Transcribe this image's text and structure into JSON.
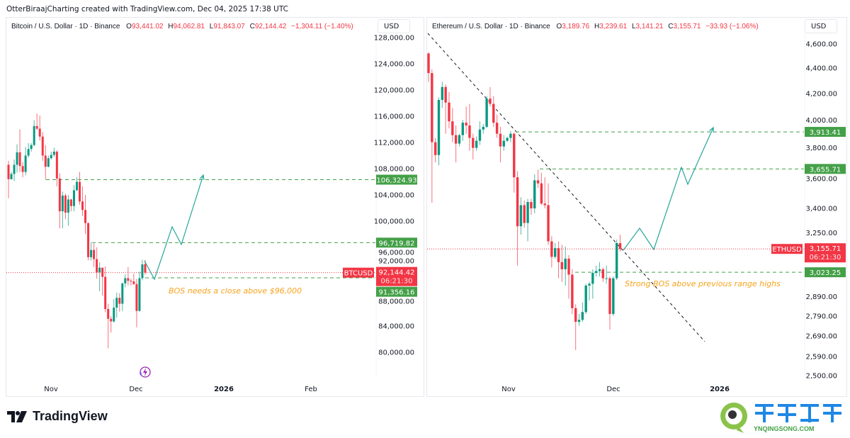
{
  "credit": "OtterBiraajCharting created with TradingView.com, Dec 04, 2025 17:38 UTC",
  "footer": {
    "logo_text": "TradingView",
    "watermark_cn": "轻松科技",
    "watermark_url": "YNQINGSONG.COM"
  },
  "colors": {
    "up": "#089981",
    "down": "#f23645",
    "level": "#43a047",
    "projection": "#26a69a",
    "note": "#f7a21b",
    "trend": "#131722"
  },
  "panels": {
    "btc": {
      "title": "Bitcoin / U.S. Dollar · 1D · Binance",
      "O": "93,441.02",
      "H": "94,062.81",
      "L": "91,843.07",
      "C": "92,144.42",
      "change": "−1,304.11 (−1.40%)",
      "currency": "USD"
    },
    "eth": {
      "title": "Ethereum / U.S. Dollar · 1D · Binance",
      "O": "3,189.76",
      "H": "3,239.61",
      "L": "3,141.21",
      "C": "3,155.71",
      "change": "−33.93 (−1.06%)",
      "currency": "USD"
    }
  },
  "chart_data": [
    {
      "type": "candlestick",
      "symbol": "BTCUSD",
      "scale": "linear",
      "ylim": [
        80000,
        128000
      ],
      "y_ticks": [
        "128,000.00",
        "124,000.00",
        "120,000.00",
        "116,000.00",
        "112,000.00",
        "108,000.00",
        "104,000.00",
        "100,000.00",
        "96,000.00",
        "92,000.00",
        "88,000.00",
        "84,000.00",
        "80,000.00"
      ],
      "x_ticks": [
        {
          "label": "Nov",
          "bold": false
        },
        {
          "label": "Dec",
          "bold": false
        },
        {
          "label": "2026",
          "bold": true
        },
        {
          "label": "Feb",
          "bold": false
        }
      ],
      "date_range": [
        "2025-10-17",
        "2025-12-04"
      ],
      "ohlc": [
        [
          108600,
          109200,
          103500,
          106400
        ],
        [
          106400,
          107500,
          106300,
          107200
        ],
        [
          107200,
          109400,
          106100,
          108600
        ],
        [
          108600,
          111700,
          107400,
          110500
        ],
        [
          110500,
          114000,
          107500,
          108400
        ],
        [
          108400,
          109000,
          106700,
          107500
        ],
        [
          107500,
          111300,
          107000,
          110000
        ],
        [
          110000,
          111900,
          109700,
          111000
        ],
        [
          111000,
          111900,
          110600,
          111600
        ],
        [
          111600,
          115400,
          111400,
          114500
        ],
        [
          114500,
          116400,
          113900,
          114100
        ],
        [
          114100,
          116100,
          112300,
          112900
        ],
        [
          112900,
          113600,
          109200,
          110000
        ],
        [
          110000,
          111600,
          106300,
          108300
        ],
        [
          108300,
          110000,
          108200,
          109600
        ],
        [
          109600,
          110600,
          109400,
          110100
        ],
        [
          110100,
          111200,
          109800,
          110600
        ],
        [
          110600,
          110800,
          105300,
          106500
        ],
        [
          106500,
          107300,
          98900,
          101500
        ],
        [
          101500,
          104500,
          98900,
          103900
        ],
        [
          103900,
          104200,
          100300,
          101300
        ],
        [
          101300,
          104000,
          99300,
          103300
        ],
        [
          103300,
          103400,
          101500,
          102300
        ],
        [
          102300,
          105500,
          101500,
          104700
        ],
        [
          104700,
          106700,
          104600,
          106000
        ],
        [
          106000,
          107500,
          102500,
          103000
        ],
        [
          103000,
          105300,
          100800,
          101700
        ],
        [
          101700,
          104000,
          98000,
          99700
        ],
        [
          99700,
          99800,
          94000,
          94500
        ],
        [
          94500,
          96800,
          94000,
          95600
        ],
        [
          95600,
          96600,
          93000,
          94200
        ],
        [
          94200,
          96000,
          91200,
          92200
        ],
        [
          92200,
          93700,
          89300,
          92900
        ],
        [
          92900,
          92900,
          88600,
          91500
        ],
        [
          91500,
          93100,
          86100,
          86600
        ],
        [
          86600,
          87400,
          80600,
          85100
        ],
        [
          85100,
          85500,
          83000,
          84700
        ],
        [
          84700,
          88100,
          84500,
          86800
        ],
        [
          86800,
          89100,
          85300,
          88300
        ],
        [
          88300,
          89000,
          86200,
          87400
        ],
        [
          87400,
          90600,
          86300,
          90500
        ],
        [
          90500,
          91900,
          89900,
          91300
        ],
        [
          91300,
          93000,
          90200,
          90900
        ],
        [
          90900,
          91200,
          90200,
          90800
        ],
        [
          90800,
          92000,
          90300,
          90400
        ],
        [
          90400,
          91200,
          83800,
          86300
        ],
        [
          86300,
          92300,
          86200,
          91300
        ],
        [
          91300,
          94100,
          91000,
          93400
        ],
        [
          93441.02,
          94062.81,
          91843.07,
          92144.42
        ]
      ],
      "levels": [
        {
          "value": 106324.93,
          "label": "106,324.93"
        },
        {
          "value": 96719.82,
          "label": "96,719.82"
        },
        {
          "value": 91356.16,
          "label": "91,356.16"
        }
      ],
      "last_price": {
        "value": 92144.42,
        "label": "92,144.42",
        "symbol": "BTCUSD",
        "countdown": "06:21:30"
      },
      "annotation": "BOS needs a close above $96,000"
    },
    {
      "type": "candlestick",
      "symbol": "ETHUSD",
      "scale": "log",
      "ylim": [
        2450,
        4800
      ],
      "y_ticks": [
        "4,600.00",
        "4,400.00",
        "4,200.00",
        "4,000.00",
        "3,800.00",
        "3,600.00",
        "3,400.00",
        "3,250.00",
        "2,890.00",
        "2,790.00",
        "2,690.00",
        "2,590.00",
        "2,500.00"
      ],
      "x_ticks": [
        {
          "label": "Nov",
          "bold": false
        },
        {
          "label": "Dec",
          "bold": false
        },
        {
          "label": "2026",
          "bold": true
        }
      ],
      "date_range": [
        "2025-10-09",
        "2025-12-04"
      ],
      "ohlc": [
        [
          4520,
          4530,
          4290,
          4360
        ],
        [
          4360,
          4390,
          3435,
          3840
        ],
        [
          3840,
          3870,
          3700,
          3750
        ],
        [
          3750,
          4170,
          3680,
          4150
        ],
        [
          4150,
          4290,
          4090,
          4250
        ],
        [
          4250,
          4270,
          3900,
          4130
        ],
        [
          4130,
          4210,
          3940,
          3990
        ],
        [
          3990,
          4090,
          3840,
          3890
        ],
        [
          3890,
          3960,
          3700,
          3830
        ],
        [
          3830,
          3900,
          3810,
          3890
        ],
        [
          3890,
          4000,
          3850,
          3980
        ],
        [
          3980,
          4100,
          3900,
          3960
        ],
        [
          3960,
          4120,
          3780,
          3870
        ],
        [
          3870,
          3900,
          3720,
          3800
        ],
        [
          3800,
          3880,
          3780,
          3850
        ],
        [
          3850,
          3990,
          3820,
          3930
        ],
        [
          3930,
          3970,
          3900,
          3950
        ],
        [
          3950,
          4180,
          3940,
          4160
        ],
        [
          4160,
          4250,
          4100,
          4120
        ],
        [
          4120,
          4180,
          3950,
          3980
        ],
        [
          3980,
          4040,
          3870,
          3900
        ],
        [
          3900,
          3950,
          3700,
          3810
        ],
        [
          3810,
          3890,
          3780,
          3850
        ],
        [
          3850,
          3880,
          3840,
          3870
        ],
        [
          3870,
          3920,
          3840,
          3900
        ],
        [
          3900,
          3910,
          3500,
          3600
        ],
        [
          3600,
          3640,
          3060,
          3290
        ],
        [
          3290,
          3470,
          3240,
          3420
        ],
        [
          3420,
          3450,
          3280,
          3310
        ],
        [
          3310,
          3460,
          3200,
          3440
        ],
        [
          3440,
          3460,
          3360,
          3400
        ],
        [
          3400,
          3620,
          3370,
          3580
        ],
        [
          3580,
          3650,
          3530,
          3560
        ],
        [
          3560,
          3630,
          3420,
          3430
        ],
        [
          3430,
          3600,
          3400,
          3420
        ],
        [
          3420,
          3560,
          3180,
          3200
        ],
        [
          3200,
          3230,
          3050,
          3110
        ],
        [
          3110,
          3190,
          3100,
          3160
        ],
        [
          3160,
          3200,
          2990,
          3080
        ],
        [
          3080,
          3180,
          2970,
          3040
        ],
        [
          3040,
          3170,
          2950,
          3100
        ],
        [
          3100,
          3120,
          2880,
          3010
        ],
        [
          3010,
          3040,
          2800,
          2830
        ],
        [
          2830,
          2850,
          2620,
          2760
        ],
        [
          2760,
          2800,
          2740,
          2770
        ],
        [
          2770,
          2860,
          2760,
          2810
        ],
        [
          2810,
          2960,
          2800,
          2950
        ],
        [
          2950,
          2970,
          2870,
          2960
        ],
        [
          2960,
          3040,
          2880,
          3020
        ],
        [
          3020,
          3060,
          3000,
          3030
        ],
        [
          3030,
          3080,
          3000,
          3040
        ],
        [
          3040,
          3050,
          2970,
          2990
        ],
        [
          2990,
          3060,
          2960,
          2990
        ],
        [
          2990,
          3000,
          2720,
          2800
        ],
        [
          2800,
          3000,
          2790,
          2990
        ],
        [
          2990,
          3210,
          2980,
          3190
        ],
        [
          3189.76,
          3239.61,
          3141.21,
          3155.71
        ]
      ],
      "levels": [
        {
          "value": 3913.41,
          "label": "3,913.41"
        },
        {
          "value": 3655.71,
          "label": "3,655.71"
        },
        {
          "value": 3023.25,
          "label": "3,023.25"
        }
      ],
      "last_price": {
        "value": 3155.71,
        "label": "3,155.71",
        "symbol": "ETHUSD",
        "countdown": "06:21:30"
      },
      "annotation": "Strong BOS above previous range highs"
    }
  ]
}
